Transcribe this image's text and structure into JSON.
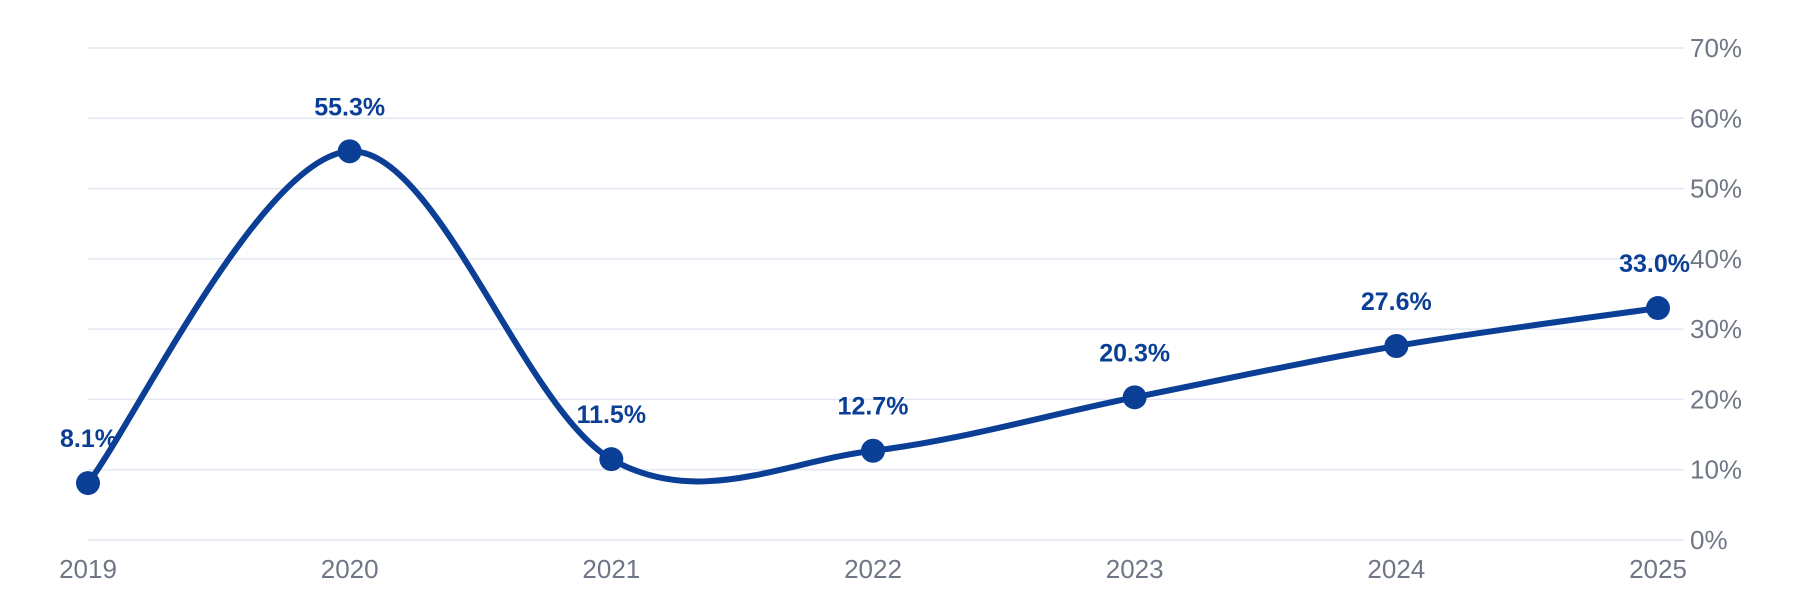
{
  "chart_data": {
    "type": "line",
    "title": "",
    "xlabel": "",
    "ylabel": "",
    "categories": [
      "2019",
      "2020",
      "2021",
      "2022",
      "2023",
      "2024",
      "2025"
    ],
    "series": [
      {
        "values": [
          8.1,
          55.3,
          11.5,
          12.7,
          20.3,
          27.6,
          33.0
        ],
        "data_labels": [
          "8.1%",
          "55.3%",
          "11.5%",
          "12.7%",
          "20.3%",
          "27.6%",
          "33.0%"
        ]
      }
    ],
    "ylim": [
      0,
      70
    ],
    "y_ticks": [
      0,
      10,
      20,
      30,
      40,
      50,
      60,
      70
    ],
    "y_tick_labels": [
      "0%",
      "10%",
      "20%",
      "30%",
      "40%",
      "50%",
      "60%",
      "70%"
    ],
    "y_axis_position": "right",
    "grid": true,
    "line_smooth": true,
    "colors": {
      "line": "#0b3f96",
      "label": "#0b3f96",
      "grid": "#e3e7f1",
      "tick": "#6f7686"
    }
  }
}
